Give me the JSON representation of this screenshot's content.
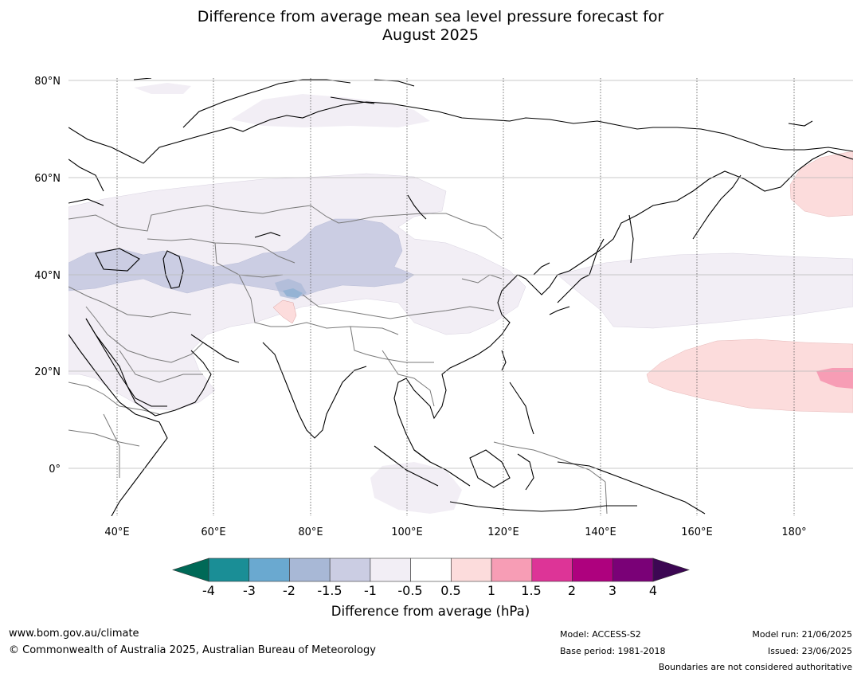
{
  "title_line1": "Difference from average mean sea level pressure forecast for",
  "title_line2": "August 2025",
  "map": {
    "lat_labels": [
      "80°N",
      "60°N",
      "40°N",
      "20°N",
      "0°"
    ],
    "lon_labels": [
      "40°E",
      "60°E",
      "80°E",
      "100°E",
      "120°E",
      "140°E",
      "160°E",
      "180°"
    ],
    "regions": [
      {
        "name": "pink high anomaly, western/central North Pacific near 20°N",
        "category": "0.5 to 1",
        "color": "#fcdcdc"
      },
      {
        "name": "pink high anomaly, Bering Sea / Kamchatka",
        "category": "0.5 to 1",
        "color": "#fcdcdc"
      },
      {
        "name": "darker pink patch east of 180° near 20°N",
        "category": "1 to 1.5",
        "color": "#f79db5"
      },
      {
        "name": "small pink patch, northern India / Pakistan",
        "category": "0.5 to 1",
        "color": "#fcdcdc"
      },
      {
        "name": "blue-grey low anomaly, Central Asia / Caspian / Tibet",
        "category": "-1.5 to -1",
        "color": "#cbcde3"
      },
      {
        "name": "light lavender low anomaly, Eurasia, Middle East, western Pacific",
        "category": "-1 to -0.5",
        "color": "#f2eef5"
      },
      {
        "name": "small blue patch, Himalaya",
        "category": "-3 to -2",
        "color": "#6aa9d0"
      }
    ]
  },
  "colorbar": {
    "title": "Difference from average (hPa)",
    "tick_labels": [
      "-4",
      "-3",
      "-2",
      "-1.5",
      "-1",
      "-0.5",
      "0.5",
      "1",
      "1.5",
      "2",
      "3",
      "4"
    ],
    "under_color": "#006957",
    "over_color": "#3c0753",
    "segment_colors": [
      "#1a8e96",
      "#6aa9d0",
      "#a8b8d6",
      "#cbcde3",
      "#f2eef5",
      "#ffffff",
      "#fcdcdc",
      "#f79db5",
      "#dd3497",
      "#ae017e",
      "#7a0177"
    ]
  },
  "footer": {
    "website": "www.bom.gov.au/climate",
    "copyright": "© Commonwealth of Australia 2025, Australian Bureau of Meteorology",
    "model": "Model: ACCESS-S2",
    "base_period": "Base period: 1981-2018",
    "model_run": "Model run: 21/06/2025",
    "issued": "Issued: 23/06/2025",
    "disclaimer": "Boundaries are not considered authoritative"
  }
}
